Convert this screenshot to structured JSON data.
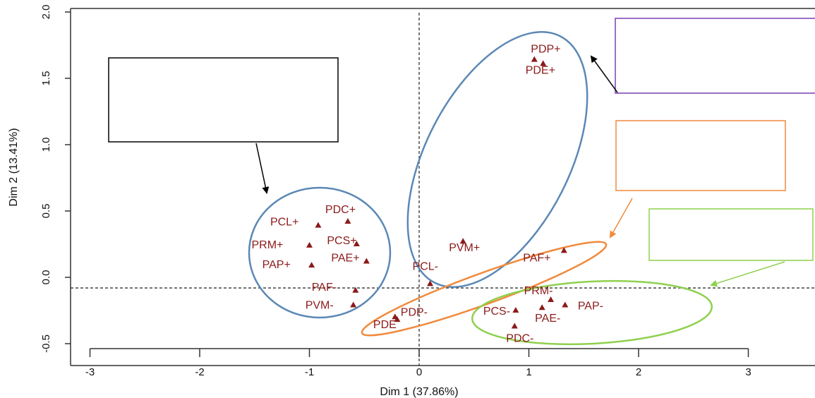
{
  "colors": {
    "points": "#8b1a1a",
    "blue_ellipse": "#5b88b5",
    "orange_ellipse": "#f08a3c",
    "green_ellipse": "#8fd04e",
    "purple_box": "#7b3fb0",
    "axis": "#333333"
  },
  "chart_data": {
    "type": "scatter",
    "title": "",
    "xlabel": "Dim 1 (37.86%)",
    "ylabel": "Dim 2 (13.41%)",
    "xlim": [
      -3,
      3
    ],
    "ylim": [
      -0.5,
      2
    ],
    "x_ticks": [
      "-3",
      "-2",
      "-1",
      "0",
      "1",
      "2",
      "3"
    ],
    "y_ticks": [
      "-0.5",
      "0.0",
      "0.5",
      "1.0",
      "1.5",
      "2.0"
    ],
    "reference_lines": {
      "x": 0,
      "y": -0.08
    },
    "grid": false,
    "points": [
      {
        "label": "PDP+",
        "x": 1.05,
        "y": 1.64
      },
      {
        "label": "PDE+",
        "x": 1.13,
        "y": 1.61
      },
      {
        "label": "PDC+",
        "x": -0.65,
        "y": 0.42
      },
      {
        "label": "PCL+",
        "x": -0.92,
        "y": 0.39
      },
      {
        "label": "PCS+",
        "x": -0.57,
        "y": 0.25
      },
      {
        "label": "PRM+",
        "x": -1.0,
        "y": 0.24
      },
      {
        "label": "PAE+",
        "x": -0.48,
        "y": 0.12
      },
      {
        "label": "PAP+",
        "x": -0.98,
        "y": 0.09
      },
      {
        "label": "PVM+",
        "x": 0.4,
        "y": 0.27
      },
      {
        "label": "PAF+",
        "x": 1.32,
        "y": 0.2
      },
      {
        "label": "PCL-",
        "x": 0.1,
        "y": -0.05
      },
      {
        "label": "PAF-",
        "x": -0.58,
        "y": -0.1
      },
      {
        "label": "PVM-",
        "x": -0.6,
        "y": -0.21
      },
      {
        "label": "PDP-",
        "x": -0.22,
        "y": -0.3
      },
      {
        "label": "PDE",
        "x": -0.2,
        "y": -0.32
      },
      {
        "label": "PRM-",
        "x": 1.2,
        "y": -0.17
      },
      {
        "label": "PAP-",
        "x": 1.33,
        "y": -0.21
      },
      {
        "label": "PAE-",
        "x": 1.12,
        "y": -0.23
      },
      {
        "label": "PCS-",
        "x": 0.88,
        "y": -0.25
      },
      {
        "label": "PDC-",
        "x": 0.87,
        "y": -0.37
      }
    ],
    "groups": [
      {
        "color": "blue",
        "members": [
          "PDC+",
          "PCL+",
          "PCS+",
          "PRM+",
          "PAE+",
          "PAP+",
          "PAF-",
          "PVM-"
        ]
      },
      {
        "color": "blue",
        "members": [
          "PDP+",
          "PDE+",
          "PVM+",
          "PCL-"
        ]
      },
      {
        "color": "orange",
        "members": [
          "PAF+",
          "PDP-",
          "PDE"
        ]
      },
      {
        "color": "green",
        "members": [
          "PRM-",
          "PAP-",
          "PAE-",
          "PCS-",
          "PDC-"
        ]
      }
    ],
    "annotation_boxes": [
      {
        "color": "black",
        "text": ""
      },
      {
        "color": "purple",
        "text": ""
      },
      {
        "color": "orange",
        "text": ""
      },
      {
        "color": "green",
        "text": ""
      }
    ]
  }
}
